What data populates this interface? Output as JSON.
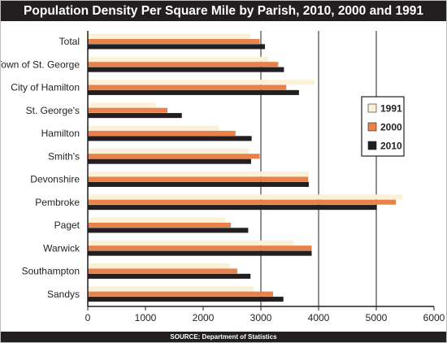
{
  "header": {
    "title": "Population Density Per Square Mile by Parish, 2010, 2000 and 1991"
  },
  "footer": {
    "source": "SOURCE: Department of Statistics"
  },
  "colors": {
    "s1991": "#fbf1d6",
    "s2000": "#e8814a",
    "s2010": "#231f20",
    "frame_bar": "#231f20"
  },
  "chart_data": {
    "type": "bar",
    "orientation": "horizontal",
    "title": "Population Density Per Square Mile by Parish, 2010, 2000 and 1991",
    "xlabel": "",
    "ylabel": "",
    "xlim": [
      0,
      6000
    ],
    "xticks": [
      0,
      1000,
      2000,
      3000,
      4000,
      5000,
      6000
    ],
    "grid": "vertical lines at 3000, 4000, 5000",
    "legend_position": "right",
    "categories": [
      "Total",
      "Town of St. George",
      "City of Hamilton",
      "St. George's",
      "Hamilton",
      "Smith's",
      "Devonshire",
      "Pembroke",
      "Paget",
      "Warwick",
      "Southampton",
      "Sandys"
    ],
    "series": [
      {
        "name": "1991",
        "color": "#fbf1d6",
        "values": [
          2820,
          3130,
          3930,
          1180,
          2270,
          2790,
          3830,
          5450,
          2380,
          3570,
          2460,
          2880
        ]
      },
      {
        "name": "2000",
        "color": "#e8814a",
        "values": [
          2980,
          3300,
          3440,
          1380,
          2560,
          2980,
          3820,
          5340,
          2480,
          3880,
          2590,
          3210
        ]
      },
      {
        "name": "2010",
        "color": "#231f20",
        "values": [
          3070,
          3400,
          3660,
          1630,
          2840,
          2830,
          3830,
          5010,
          2780,
          3880,
          2820,
          3390
        ]
      }
    ]
  }
}
